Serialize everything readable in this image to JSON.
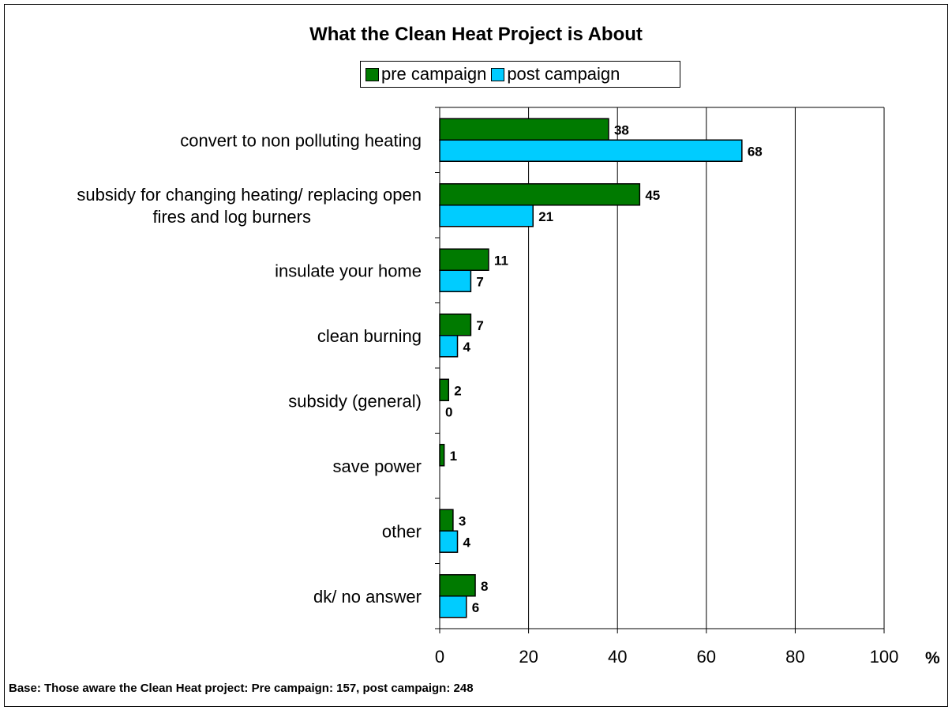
{
  "chart_data": {
    "type": "bar",
    "orientation": "horizontal",
    "title": "What the Clean Heat Project is About",
    "categories": [
      [
        "convert to non polluting heating"
      ],
      [
        "subsidy for changing heating/ replacing open",
        "fires and log burners"
      ],
      [
        "insulate your home"
      ],
      [
        "clean burning"
      ],
      [
        "subsidy (general)"
      ],
      [
        "save power"
      ],
      [
        "other"
      ],
      [
        "dk/ no answer"
      ]
    ],
    "series": [
      {
        "name": "pre campaign",
        "color": "#007a00",
        "values": [
          38,
          45,
          11,
          7,
          2,
          1,
          3,
          8
        ]
      },
      {
        "name": "post campaign",
        "color": "#00ccff",
        "values": [
          68,
          21,
          7,
          4,
          0,
          null,
          4,
          6
        ]
      }
    ],
    "xlim": [
      0,
      100
    ],
    "xticks": [
      0,
      20,
      40,
      60,
      80,
      100
    ],
    "xlabel": "%",
    "grid": true,
    "legend_position": "top-center"
  },
  "footnote": "Base:  Those aware the Clean Heat project: Pre campaign: 157,  post campaign: 248"
}
